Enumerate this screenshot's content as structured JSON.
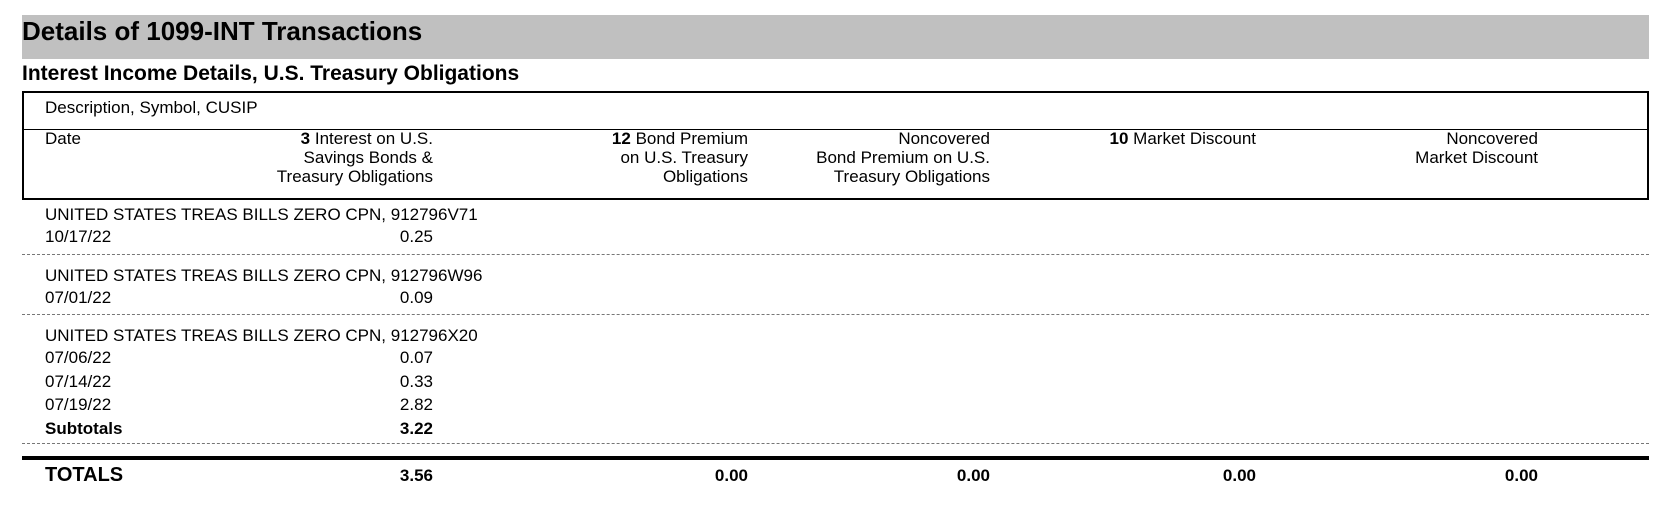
{
  "header": {
    "title": "Details of 1099-INT Transactions",
    "subtitle": "Interest Income Details, U.S. Treasury Obligations"
  },
  "table": {
    "description_header": "Description, Symbol, CUSIP",
    "columns": [
      {
        "label": [
          "Date"
        ]
      },
      {
        "number": "3",
        "label": [
          "Interest on U.S.",
          "Savings Bonds &",
          "Treasury Obligations"
        ]
      },
      {
        "number": "12",
        "label": [
          "Bond Premium",
          "on U.S. Treasury",
          "Obligations"
        ]
      },
      {
        "label": [
          "Noncovered",
          "Bond Premium on U.S.",
          "Treasury Obligations"
        ]
      },
      {
        "number": "10",
        "label": [
          "Market Discount"
        ]
      },
      {
        "label": [
          "Noncovered",
          "Market Discount"
        ]
      }
    ],
    "groups": [
      {
        "description": "UNITED STATES TREAS BILLS ZERO CPN, 912796V71",
        "rows": [
          [
            "10/17/22",
            "0.25"
          ]
        ]
      },
      {
        "description": "UNITED STATES TREAS BILLS ZERO CPN, 912796W96",
        "rows": [
          [
            "07/01/22",
            "0.09"
          ]
        ]
      },
      {
        "description": "UNITED STATES TREAS BILLS ZERO CPN, 912796X20",
        "rows": [
          [
            "07/06/22",
            "0.07"
          ],
          [
            "07/14/22",
            "0.33"
          ],
          [
            "07/19/22",
            "2.82"
          ]
        ],
        "subtotal": [
          "Subtotals",
          "3.22"
        ]
      }
    ],
    "totals": [
      "TOTALS",
      "3.56",
      "0.00",
      "0.00",
      "0.00",
      "0.00"
    ]
  }
}
